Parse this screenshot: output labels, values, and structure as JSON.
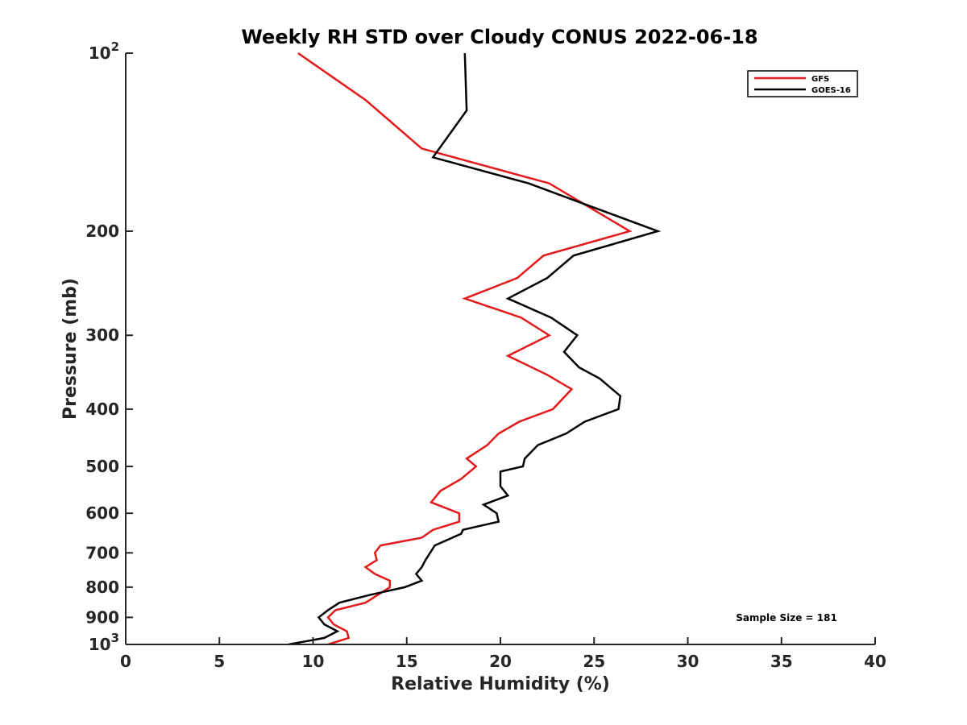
{
  "chart_data": {
    "type": "line",
    "title": "Weekly RH STD over Cloudy CONUS 2022-06-18",
    "xlabel": "Relative Humidity (%)",
    "ylabel": "Pressure (mb)",
    "xlim": [
      0,
      40
    ],
    "ylim": [
      100,
      1000
    ],
    "yscale": "log",
    "y_reversed": true,
    "grid": false,
    "legend_position": "top-right",
    "x_ticks": [
      "0",
      "5",
      "10",
      "15",
      "20",
      "25",
      "30",
      "35",
      "40"
    ],
    "y_ticks": [
      {
        "value": 100,
        "base": "10",
        "exp": "2"
      },
      {
        "value": 200,
        "label": "200"
      },
      {
        "value": 300,
        "label": "300"
      },
      {
        "value": 400,
        "label": "400"
      },
      {
        "value": 500,
        "label": "500"
      },
      {
        "value": 600,
        "label": "600"
      },
      {
        "value": 700,
        "label": "700"
      },
      {
        "value": 800,
        "label": "800"
      },
      {
        "value": 900,
        "label": "900"
      },
      {
        "value": 1000,
        "base": "10",
        "exp": "3"
      }
    ],
    "annotation": "Sample Size = 181",
    "series": [
      {
        "name": "GFS",
        "color": "#e31a1c",
        "points": [
          {
            "x": 10.8,
            "y": 1000
          },
          {
            "x": 11.9,
            "y": 975
          },
          {
            "x": 11.8,
            "y": 950
          },
          {
            "x": 11.1,
            "y": 925
          },
          {
            "x": 10.8,
            "y": 900
          },
          {
            "x": 11.2,
            "y": 875
          },
          {
            "x": 12.8,
            "y": 850
          },
          {
            "x": 14.1,
            "y": 800
          },
          {
            "x": 14.1,
            "y": 780
          },
          {
            "x": 13.3,
            "y": 760
          },
          {
            "x": 12.8,
            "y": 740
          },
          {
            "x": 13.4,
            "y": 720
          },
          {
            "x": 13.3,
            "y": 700
          },
          {
            "x": 13.6,
            "y": 680
          },
          {
            "x": 15.8,
            "y": 660
          },
          {
            "x": 16.4,
            "y": 640
          },
          {
            "x": 17.8,
            "y": 620
          },
          {
            "x": 17.8,
            "y": 600
          },
          {
            "x": 16.3,
            "y": 575
          },
          {
            "x": 16.8,
            "y": 550
          },
          {
            "x": 17.9,
            "y": 525
          },
          {
            "x": 18.7,
            "y": 500
          },
          {
            "x": 18.2,
            "y": 485
          },
          {
            "x": 19.3,
            "y": 460
          },
          {
            "x": 19.9,
            "y": 440
          },
          {
            "x": 21.0,
            "y": 420
          },
          {
            "x": 22.8,
            "y": 400
          },
          {
            "x": 23.8,
            "y": 370
          },
          {
            "x": 22.5,
            "y": 350
          },
          {
            "x": 20.4,
            "y": 325
          },
          {
            "x": 22.6,
            "y": 300
          },
          {
            "x": 21.1,
            "y": 280
          },
          {
            "x": 18.1,
            "y": 260
          },
          {
            "x": 20.9,
            "y": 240
          },
          {
            "x": 22.3,
            "y": 220
          },
          {
            "x": 26.9,
            "y": 200
          },
          {
            "x": 22.6,
            "y": 166
          },
          {
            "x": 15.8,
            "y": 145
          },
          {
            "x": 12.8,
            "y": 120
          },
          {
            "x": 9.2,
            "y": 100
          }
        ]
      },
      {
        "name": "GOES-16",
        "color": "#000000",
        "points": [
          {
            "x": 8.7,
            "y": 1000
          },
          {
            "x": 10.6,
            "y": 975
          },
          {
            "x": 11.3,
            "y": 950
          },
          {
            "x": 10.6,
            "y": 925
          },
          {
            "x": 10.3,
            "y": 900
          },
          {
            "x": 10.8,
            "y": 875
          },
          {
            "x": 11.4,
            "y": 850
          },
          {
            "x": 13.0,
            "y": 825
          },
          {
            "x": 14.9,
            "y": 800
          },
          {
            "x": 15.8,
            "y": 780
          },
          {
            "x": 15.5,
            "y": 760
          },
          {
            "x": 15.8,
            "y": 740
          },
          {
            "x": 16.0,
            "y": 720
          },
          {
            "x": 16.5,
            "y": 680
          },
          {
            "x": 17.9,
            "y": 650
          },
          {
            "x": 18.0,
            "y": 640
          },
          {
            "x": 19.9,
            "y": 620
          },
          {
            "x": 19.8,
            "y": 600
          },
          {
            "x": 19.1,
            "y": 580
          },
          {
            "x": 20.4,
            "y": 560
          },
          {
            "x": 20.0,
            "y": 540
          },
          {
            "x": 20.0,
            "y": 510
          },
          {
            "x": 21.2,
            "y": 500
          },
          {
            "x": 21.3,
            "y": 485
          },
          {
            "x": 22.0,
            "y": 460
          },
          {
            "x": 23.5,
            "y": 440
          },
          {
            "x": 24.5,
            "y": 420
          },
          {
            "x": 26.3,
            "y": 400
          },
          {
            "x": 26.4,
            "y": 380
          },
          {
            "x": 25.3,
            "y": 355
          },
          {
            "x": 24.2,
            "y": 340
          },
          {
            "x": 23.4,
            "y": 320
          },
          {
            "x": 24.1,
            "y": 300
          },
          {
            "x": 22.7,
            "y": 280
          },
          {
            "x": 20.4,
            "y": 260
          },
          {
            "x": 22.5,
            "y": 240
          },
          {
            "x": 23.9,
            "y": 220
          },
          {
            "x": 28.4,
            "y": 200
          },
          {
            "x": 24.5,
            "y": 180
          },
          {
            "x": 21.5,
            "y": 166
          },
          {
            "x": 16.4,
            "y": 150
          },
          {
            "x": 18.2,
            "y": 125
          },
          {
            "x": 18.1,
            "y": 100
          }
        ]
      }
    ]
  }
}
